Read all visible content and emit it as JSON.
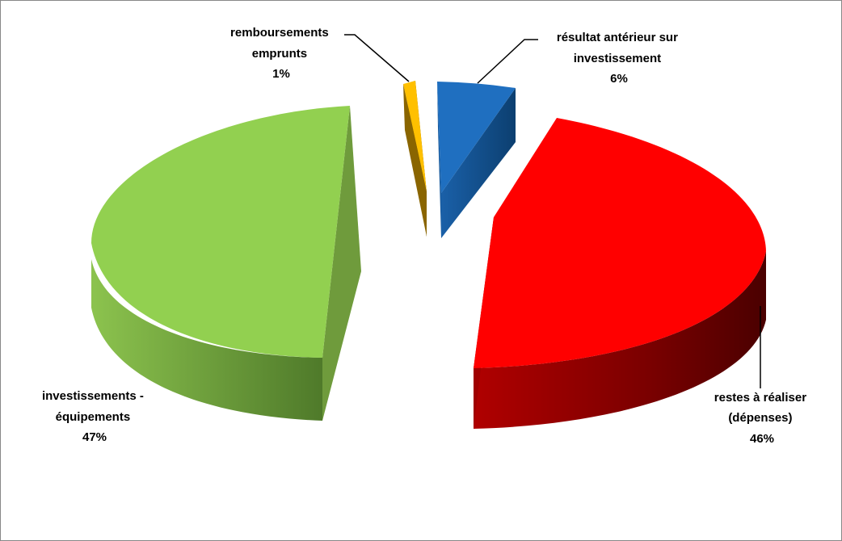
{
  "chart_data": {
    "type": "pie",
    "title": "",
    "legend": "none",
    "categories": [
      "résultat antérieur sur investissement",
      "restes à réaliser (dépenses)",
      "investissements - équipements",
      "remboursements emprunts"
    ],
    "values": [
      6,
      46,
      47,
      1
    ],
    "unit": "%",
    "colors": [
      "#1f6fc0",
      "#ff0000",
      "#92d050",
      "#ffc000"
    ],
    "side_colors": [
      "#0f4e8c",
      "#6e0000",
      "#5f8a35",
      "#7a5a00"
    ],
    "labels": [
      {
        "lines": [
          "résultat antérieur sur",
          "investissement"
        ],
        "pct": "6%"
      },
      {
        "lines": [
          "restes à réaliser",
          "(dépenses)"
        ],
        "pct": "46%"
      },
      {
        "lines": [
          "investissements -",
          "équipements"
        ],
        "pct": "47%"
      },
      {
        "lines": [
          "remboursements",
          "emprunts"
        ],
        "pct": "1%"
      }
    ]
  }
}
